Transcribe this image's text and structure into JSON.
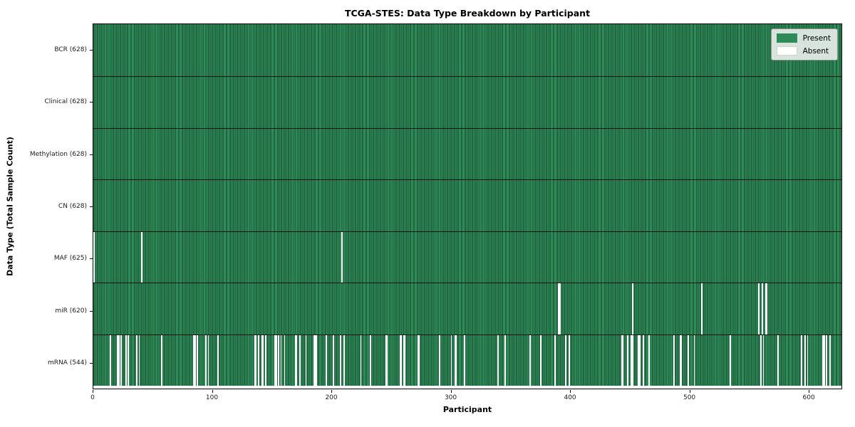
{
  "title": "TCGA-STES: Data Type Breakdown by Participant",
  "chart_data": {
    "type": "heatmap",
    "title": "TCGA-STES: Data Type Breakdown by Participant",
    "xlabel": "Participant",
    "ylabel": "Data Type (Total Sample Count)",
    "x_ticks": [
      0,
      100,
      200,
      300,
      400,
      500,
      600
    ],
    "x_range": [
      0,
      628
    ],
    "n_participants": 628,
    "grid": false,
    "legend_position": "upper right",
    "legend": [
      {
        "label": "Present",
        "color": "#2e8b57"
      },
      {
        "label": "Absent",
        "color": "#ffffff"
      }
    ],
    "rows": [
      {
        "label": "BCR (628)",
        "data_type": "BCR",
        "present_count": 628,
        "absent_participants": []
      },
      {
        "label": "Clinical (628)",
        "data_type": "Clinical",
        "present_count": 628,
        "absent_participants": []
      },
      {
        "label": "Methylation (628)",
        "data_type": "Methylation",
        "present_count": 628,
        "absent_participants": []
      },
      {
        "label": "CN (628)",
        "data_type": "CN",
        "present_count": 628,
        "absent_participants": []
      },
      {
        "label": "MAF (625)",
        "data_type": "MAF",
        "present_count": 625,
        "absent_participants": [
          0,
          40,
          208
        ]
      },
      {
        "label": "miR (620)",
        "data_type": "miR",
        "present_count": 620,
        "absent_participants": [
          390,
          391,
          452,
          510,
          558,
          561,
          564,
          565
        ]
      },
      {
        "label": "mRNA (544)",
        "data_type": "mRNA",
        "present_count": 544,
        "absent_participants": [
          14,
          20,
          21,
          23,
          27,
          29,
          36,
          38,
          57,
          84,
          85,
          87,
          94,
          96,
          104,
          135,
          136,
          138,
          141,
          142,
          144,
          152,
          153,
          155,
          157,
          160,
          169,
          170,
          173,
          178,
          185,
          186,
          187,
          195,
          201,
          207,
          210,
          224,
          232,
          245,
          246,
          257,
          258,
          260,
          261,
          272,
          273,
          290,
          300,
          303,
          304,
          311,
          339,
          345,
          366,
          375,
          387,
          396,
          399,
          443,
          444,
          448,
          451,
          452,
          457,
          458,
          461,
          466,
          487,
          492,
          493,
          499,
          504,
          534,
          560,
          562,
          574,
          594,
          597,
          599,
          612,
          613,
          615,
          618
        ]
      }
    ],
    "colors": {
      "present": "#2e8b57",
      "bar_edge": "#14402a",
      "absent": "#ffffff",
      "plot_border": "#000000",
      "legend_face": "#eff2ef",
      "legend_border": "#8f948f"
    }
  }
}
